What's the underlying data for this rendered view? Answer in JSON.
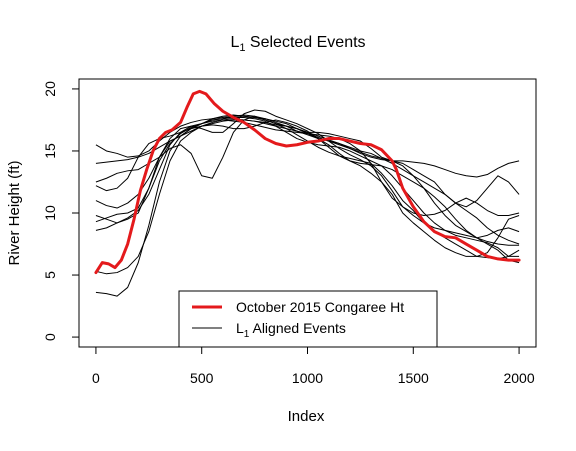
{
  "chart_data": {
    "type": "line",
    "title_main": "L",
    "title_sub": "1",
    "title_rest": " Selected Events",
    "xlabel": "Index",
    "ylabel": "River Height (ft)",
    "xlim": [
      -80,
      2080
    ],
    "ylim": [
      -0.8,
      20.8
    ],
    "x_ticks": [
      0,
      500,
      1000,
      1500,
      2000
    ],
    "y_ticks": [
      0,
      5,
      10,
      15,
      20
    ],
    "grid": false,
    "legend_position": "bottom-center",
    "legend": [
      {
        "label": "October 2015 Congaree Ht",
        "color": "#e41a1c",
        "style": "thick"
      },
      {
        "label_main": "L",
        "label_sub": "1",
        "label_rest": " Aligned Events",
        "color": "#000000",
        "style": "thin"
      }
    ],
    "highlight_series": {
      "name": "October 2015 Congaree Ht",
      "color": "#e41a1c",
      "x": [
        0,
        30,
        60,
        90,
        120,
        150,
        180,
        210,
        240,
        270,
        300,
        330,
        360,
        400,
        430,
        460,
        490,
        520,
        560,
        600,
        650,
        700,
        750,
        800,
        850,
        900,
        950,
        1000,
        1050,
        1100,
        1150,
        1200,
        1250,
        1300,
        1350,
        1400,
        1420,
        1450,
        1500,
        1550,
        1600,
        1650,
        1700,
        1750,
        1800,
        1850,
        1900,
        1950,
        2000
      ],
      "y": [
        5.2,
        6.0,
        5.9,
        5.6,
        6.2,
        7.5,
        9.5,
        11.8,
        13.5,
        15.0,
        16.0,
        16.5,
        16.7,
        17.3,
        18.5,
        19.6,
        19.8,
        19.6,
        18.8,
        18.2,
        17.7,
        17.3,
        16.7,
        16.0,
        15.6,
        15.4,
        15.5,
        15.7,
        15.8,
        16.0,
        16.0,
        15.8,
        15.6,
        15.5,
        15.1,
        14.2,
        13.5,
        12.0,
        10.5,
        9.3,
        8.5,
        8.1,
        8.0,
        7.5,
        7.0,
        6.5,
        6.3,
        6.2,
        6.2
      ]
    },
    "series": [
      {
        "values": [
          15.5,
          15.0,
          14.8,
          14.5,
          14.6,
          15.0,
          15.8,
          16.5,
          17.0,
          17.3,
          17.5,
          17.6,
          17.7,
          17.8,
          17.8,
          17.7,
          17.6,
          17.4,
          17.2,
          16.8,
          16.4,
          16.0,
          15.5,
          14.8,
          14.2,
          13.8,
          13.2,
          12.5,
          11.5,
          10.0,
          9.2,
          8.5,
          7.8,
          7.2,
          6.8,
          6.5,
          6.5,
          6.8,
          8.0,
          9.5,
          9.8
        ]
      },
      {
        "values": [
          14.0,
          14.1,
          14.2,
          14.3,
          14.5,
          14.8,
          15.3,
          15.8,
          16.2,
          16.6,
          17.0,
          17.3,
          17.5,
          17.6,
          17.5,
          17.4,
          17.3,
          17.1,
          17.0,
          16.8,
          16.5,
          16.2,
          15.9,
          15.6,
          15.2,
          14.8,
          14.5,
          14.3,
          14.2,
          14.2,
          14.1,
          14.0,
          13.8,
          13.5,
          13.2,
          13.0,
          12.9,
          13.1,
          13.6,
          14.0,
          14.2
        ]
      },
      {
        "values": [
          12.5,
          12.8,
          13.2,
          13.4,
          13.5,
          14.0,
          14.5,
          15.2,
          15.5,
          14.8,
          13.0,
          12.8,
          14.5,
          16.5,
          17.5,
          17.8,
          17.5,
          17.2,
          17.0,
          16.8,
          16.5,
          16.5,
          16.4,
          16.2,
          16.0,
          15.8,
          15.2,
          14.5,
          14.2,
          14.0,
          13.5,
          13.0,
          12.5,
          11.5,
          10.8,
          10.5,
          11.0,
          12.0,
          13.0,
          12.5,
          11.5
        ]
      },
      {
        "values": [
          3.6,
          3.5,
          3.3,
          4.0,
          6.0,
          9.0,
          12.5,
          15.0,
          16.2,
          16.8,
          17.2,
          17.5,
          17.6,
          17.8,
          17.9,
          17.8,
          17.6,
          17.3,
          17.0,
          16.6,
          16.3,
          16.0,
          15.8,
          15.6,
          15.3,
          15.0,
          14.8,
          14.4,
          14.0,
          13.5,
          13.0,
          12.5,
          12.0,
          11.5,
          10.8,
          10.2,
          9.6,
          8.8,
          8.2,
          7.8,
          7.5
        ]
      },
      {
        "values": [
          9.8,
          9.5,
          9.2,
          9.5,
          10.0,
          12.0,
          14.5,
          15.8,
          16.2,
          16.8,
          17.2,
          17.6,
          17.8,
          17.9,
          17.8,
          17.7,
          17.5,
          17.2,
          16.8,
          16.3,
          15.8,
          15.3,
          14.9,
          14.6,
          14.4,
          14.2,
          14.0,
          13.2,
          12.2,
          11.0,
          10.2,
          9.2,
          8.5,
          8.0,
          7.5,
          7.0,
          6.5,
          6.4,
          6.3,
          6.5,
          7.0
        ]
      },
      {
        "values": [
          11.0,
          10.6,
          10.4,
          10.8,
          11.5,
          12.8,
          14.5,
          16.0,
          16.8,
          17.0,
          16.8,
          16.5,
          16.5,
          17.2,
          18.0,
          18.3,
          18.2,
          17.8,
          17.5,
          17.2,
          16.8,
          16.4,
          15.8,
          15.2,
          14.7,
          14.3,
          13.8,
          13.0,
          11.8,
          10.5,
          9.8,
          9.2,
          8.8,
          8.6,
          8.4,
          8.2,
          8.0,
          8.2,
          8.6,
          8.8,
          8.5
        ]
      },
      {
        "values": [
          8.6,
          8.8,
          9.2,
          9.6,
          10.2,
          11.5,
          13.5,
          15.5,
          16.5,
          17.0,
          17.2,
          17.4,
          17.5,
          17.4,
          17.3,
          17.1,
          16.9,
          16.7,
          16.6,
          16.5,
          16.4,
          16.3,
          16.2,
          16.0,
          15.6,
          15.0,
          14.0,
          12.5,
          11.2,
          10.5,
          10.0,
          9.8,
          9.9,
          10.2,
          10.8,
          11.2,
          10.8,
          10.2,
          9.8,
          9.8,
          10.0
        ]
      },
      {
        "values": [
          5.3,
          5.1,
          5.2,
          5.6,
          6.5,
          8.5,
          11.5,
          14.2,
          15.8,
          16.5,
          17.0,
          17.2,
          17.4,
          17.5,
          17.5,
          17.4,
          17.2,
          17.0,
          16.8,
          16.6,
          16.4,
          16.1,
          15.8,
          15.5,
          15.2,
          14.9,
          14.6,
          14.4,
          14.2,
          13.8,
          13.0,
          12.0,
          10.8,
          9.8,
          9.0,
          8.5,
          8.0,
          7.5,
          7.0,
          6.2,
          6.0
        ]
      },
      {
        "values": [
          9.3,
          9.6,
          9.9,
          10.0,
          10.4,
          12.0,
          14.2,
          15.6,
          16.4,
          16.9,
          17.2,
          17.5,
          17.6,
          17.7,
          17.7,
          17.6,
          17.4,
          17.0,
          16.5,
          16.0,
          15.7,
          15.5,
          15.4,
          15.3,
          15.0,
          14.6,
          14.2,
          13.8,
          13.0,
          12.0,
          11.0,
          10.0,
          9.2,
          8.6,
          8.2,
          8.0,
          7.8,
          7.6,
          7.2,
          6.5,
          6.5
        ]
      },
      {
        "values": [
          12.2,
          11.8,
          12.0,
          12.8,
          14.5,
          15.6,
          16.0,
          16.2,
          16.5,
          16.8,
          17.0,
          17.1,
          17.0,
          16.8,
          16.8,
          17.0,
          17.3,
          17.5,
          17.3,
          17.0,
          16.6,
          16.0,
          15.3,
          14.6,
          14.2,
          14.0,
          13.9,
          13.8,
          13.5,
          13.0,
          12.5,
          12.0,
          11.3,
          10.5,
          9.5,
          8.6,
          8.0,
          7.7,
          7.5,
          7.4,
          7.4
        ]
      }
    ],
    "series_x_start": 0,
    "series_x_step": 50
  }
}
